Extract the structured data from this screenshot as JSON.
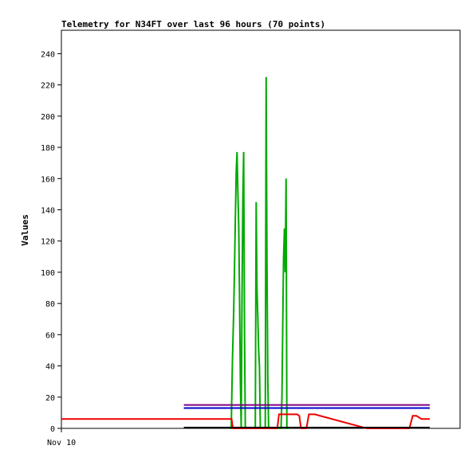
{
  "chart_data": {
    "type": "line",
    "title": "Telemetry for N34FT over last 96 hours (70 points)",
    "xlabel": "",
    "ylabel": "Values",
    "ylim": [
      0,
      255
    ],
    "xlim": [
      0,
      96
    ],
    "yticks": [
      0,
      20,
      40,
      60,
      80,
      100,
      120,
      140,
      160,
      180,
      200,
      220,
      240
    ],
    "xticks": [
      {
        "x": 0,
        "label": "Nov 10"
      }
    ],
    "grid": false,
    "legend": "none",
    "series": [
      {
        "color": "#00aa00",
        "x": [
          40.6,
          40.9,
          41.2,
          41.5,
          41.7,
          41.9,
          42.1,
          42.3,
          42.5,
          42.7,
          42.9,
          43.1,
          43.3,
          43.5,
          43.7,
          43.9,
          44.1,
          44.3,
          44.5,
          44.7,
          44.9,
          45.1,
          45.3,
          45.5,
          45.7,
          45.9,
          46.1,
          46.3,
          46.5,
          46.7,
          46.9,
          47.1,
          47.3,
          47.5,
          47.7,
          47.9,
          48.1,
          48.3,
          48.5,
          48.7,
          48.9,
          49.1,
          49.3,
          49.5,
          49.7,
          49.9,
          50.1,
          50.3,
          50.5,
          50.7,
          50.9,
          51.1,
          51.3,
          51.5,
          51.7,
          51.9,
          52.1,
          52.3,
          52.5,
          52.7,
          52.9,
          53.1,
          53.3,
          53.5,
          53.7,
          53.9,
          54.1,
          54.3,
          54.5,
          54.7
        ],
        "y": [
          0,
          0,
          45,
          75,
          105,
          135,
          165,
          177,
          150,
          130,
          85,
          30,
          0,
          88,
          148,
          177,
          60,
          0,
          0,
          0,
          0,
          0,
          0,
          0,
          0,
          0,
          0,
          0,
          0,
          0,
          145,
          90,
          70,
          50,
          40,
          0,
          0,
          0,
          0,
          0,
          0,
          0,
          225,
          110,
          30,
          0,
          0,
          0,
          0,
          0,
          0,
          0,
          0,
          0,
          0,
          0,
          0,
          0,
          0,
          0,
          0,
          20,
          65,
          108,
          128,
          100,
          160,
          0,
          0,
          0
        ]
      },
      {
        "color": "#ee0000",
        "x": [
          0,
          41.0,
          41.3,
          52.0,
          52.4,
          53.0,
          56.8,
          57.3,
          57.7,
          59.0,
          59.6,
          60.1,
          61.0,
          73.5,
          83.8,
          84.6,
          85.5,
          86.7,
          88.7
        ],
        "y": [
          6,
          6,
          0,
          0,
          9,
          9,
          9,
          8,
          0,
          0,
          9,
          9,
          9,
          0,
          0,
          8,
          8,
          6,
          6
        ]
      },
      {
        "color": "#800080",
        "x": [
          29.5,
          88.7
        ],
        "y": [
          15,
          15
        ]
      },
      {
        "color": "#0000cc",
        "x": [
          29.5,
          88.7
        ],
        "y": [
          13,
          13
        ]
      },
      {
        "color": "#000000",
        "x": [
          29.5,
          88.7
        ],
        "y": [
          0.5,
          0.5
        ]
      }
    ]
  }
}
